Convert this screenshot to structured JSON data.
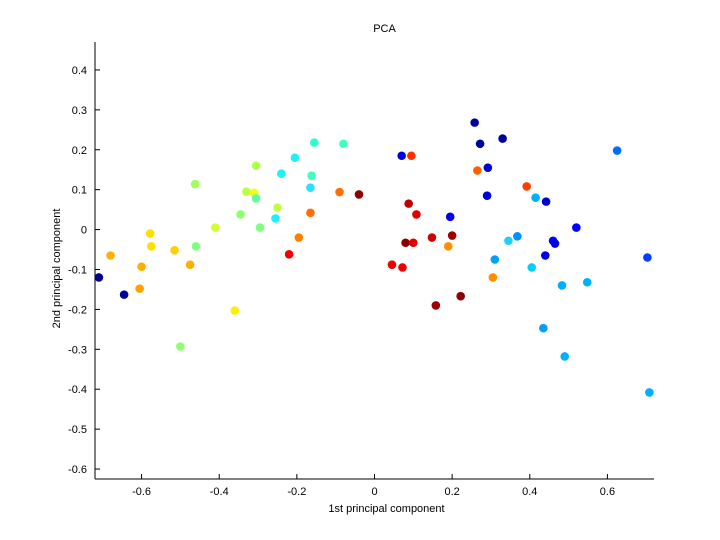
{
  "chart_data": {
    "type": "scatter",
    "title": "PCA",
    "xlabel": "1st principal component",
    "ylabel": "2nd principal component",
    "xlim": [
      -0.72,
      0.72
    ],
    "ylim": [
      -0.625,
      0.47
    ],
    "xticks": [
      -0.6,
      -0.4,
      -0.2,
      0,
      0.2,
      0.4,
      0.6
    ],
    "xtick_labels": [
      "-0.6",
      "-0.4",
      "-0.2",
      "0",
      "0.2",
      "0.4",
      "0.6"
    ],
    "yticks": [
      0.4,
      0.3,
      0.2,
      0.1,
      0,
      -0.1,
      -0.2,
      -0.3,
      -0.4,
      -0.5,
      -0.6
    ],
    "ytick_labels": [
      "0.4",
      "0.3",
      "0.2",
      "0.1",
      "0",
      "-0.1",
      "-0.2",
      "-0.3",
      "-0.4",
      "-0.5",
      "-0.6"
    ],
    "grid": false,
    "legend": "none",
    "colormap": "jet",
    "points": [
      {
        "x": -0.71,
        "y": -0.12,
        "c": "#00008f"
      },
      {
        "x": -0.645,
        "y": -0.163,
        "c": "#00009f"
      },
      {
        "x": -0.68,
        "y": -0.065,
        "c": "#ffaf00"
      },
      {
        "x": -0.6,
        "y": -0.093,
        "c": "#ffaf00"
      },
      {
        "x": -0.605,
        "y": -0.148,
        "c": "#ff9f00"
      },
      {
        "x": -0.578,
        "y": -0.01,
        "c": "#ffdf00"
      },
      {
        "x": -0.575,
        "y": -0.042,
        "c": "#ffdf00"
      },
      {
        "x": -0.515,
        "y": -0.052,
        "c": "#ffcf00"
      },
      {
        "x": -0.5,
        "y": -0.293,
        "c": "#8fff6f"
      },
      {
        "x": -0.475,
        "y": -0.088,
        "c": "#ffaf00"
      },
      {
        "x": -0.462,
        "y": 0.114,
        "c": "#9fff5f"
      },
      {
        "x": -0.46,
        "y": -0.042,
        "c": "#7fff7f"
      },
      {
        "x": -0.41,
        "y": 0.005,
        "c": "#cfff2f"
      },
      {
        "x": -0.36,
        "y": -0.203,
        "c": "#ffef00"
      },
      {
        "x": -0.345,
        "y": 0.038,
        "c": "#8fff6f"
      },
      {
        "x": -0.33,
        "y": 0.095,
        "c": "#bfff3f"
      },
      {
        "x": -0.31,
        "y": 0.092,
        "c": "#efff0f"
      },
      {
        "x": -0.305,
        "y": 0.16,
        "c": "#afff4f"
      },
      {
        "x": -0.305,
        "y": 0.078,
        "c": "#5fff9f"
      },
      {
        "x": -0.295,
        "y": 0.005,
        "c": "#7fff7f"
      },
      {
        "x": -0.255,
        "y": 0.028,
        "c": "#1fefff"
      },
      {
        "x": -0.25,
        "y": 0.055,
        "c": "#bfff3f"
      },
      {
        "x": -0.24,
        "y": 0.14,
        "c": "#1fefff"
      },
      {
        "x": -0.22,
        "y": -0.062,
        "c": "#ef0000"
      },
      {
        "x": -0.205,
        "y": 0.18,
        "c": "#1fefff"
      },
      {
        "x": -0.195,
        "y": -0.02,
        "c": "#ff7f00"
      },
      {
        "x": -0.165,
        "y": 0.105,
        "c": "#2fdfff"
      },
      {
        "x": -0.165,
        "y": 0.042,
        "c": "#ff6f00"
      },
      {
        "x": -0.162,
        "y": 0.135,
        "c": "#3fffbf"
      },
      {
        "x": -0.155,
        "y": 0.218,
        "c": "#2fffcf"
      },
      {
        "x": -0.09,
        "y": 0.094,
        "c": "#ff6f00"
      },
      {
        "x": -0.08,
        "y": 0.215,
        "c": "#3fffbf"
      },
      {
        "x": -0.04,
        "y": 0.088,
        "c": "#8f0000"
      },
      {
        "x": 0.045,
        "y": -0.088,
        "c": "#ef0000"
      },
      {
        "x": 0.07,
        "y": 0.185,
        "c": "#0000df"
      },
      {
        "x": 0.072,
        "y": -0.095,
        "c": "#ef0000"
      },
      {
        "x": 0.08,
        "y": -0.033,
        "c": "#8f0000"
      },
      {
        "x": 0.088,
        "y": 0.065,
        "c": "#bf0000"
      },
      {
        "x": 0.095,
        "y": 0.185,
        "c": "#ff2f00"
      },
      {
        "x": 0.1,
        "y": -0.033,
        "c": "#df0000"
      },
      {
        "x": 0.108,
        "y": 0.038,
        "c": "#df0000"
      },
      {
        "x": 0.148,
        "y": -0.02,
        "c": "#cf0000"
      },
      {
        "x": 0.158,
        "y": -0.19,
        "c": "#9f0000"
      },
      {
        "x": 0.19,
        "y": -0.042,
        "c": "#ff8f00"
      },
      {
        "x": 0.195,
        "y": 0.032,
        "c": "#0000ef"
      },
      {
        "x": 0.2,
        "y": -0.015,
        "c": "#9f0000"
      },
      {
        "x": 0.222,
        "y": -0.167,
        "c": "#8f0000"
      },
      {
        "x": 0.258,
        "y": 0.268,
        "c": "#00009f"
      },
      {
        "x": 0.265,
        "y": 0.148,
        "c": "#ff5f00"
      },
      {
        "x": 0.272,
        "y": 0.215,
        "c": "#00009f"
      },
      {
        "x": 0.29,
        "y": 0.085,
        "c": "#0000df"
      },
      {
        "x": 0.292,
        "y": 0.155,
        "c": "#0000cf"
      },
      {
        "x": 0.305,
        "y": -0.12,
        "c": "#ff8f00"
      },
      {
        "x": 0.31,
        "y": -0.075,
        "c": "#009fff"
      },
      {
        "x": 0.33,
        "y": 0.228,
        "c": "#00009f"
      },
      {
        "x": 0.345,
        "y": -0.028,
        "c": "#1fcfff"
      },
      {
        "x": 0.368,
        "y": -0.017,
        "c": "#008fff"
      },
      {
        "x": 0.392,
        "y": 0.108,
        "c": "#ff3f00"
      },
      {
        "x": 0.405,
        "y": -0.095,
        "c": "#00cfff"
      },
      {
        "x": 0.415,
        "y": 0.08,
        "c": "#00afff"
      },
      {
        "x": 0.435,
        "y": -0.247,
        "c": "#009fff"
      },
      {
        "x": 0.44,
        "y": -0.065,
        "c": "#0000df"
      },
      {
        "x": 0.442,
        "y": 0.07,
        "c": "#0000cf"
      },
      {
        "x": 0.46,
        "y": -0.028,
        "c": "#0000ff"
      },
      {
        "x": 0.465,
        "y": -0.035,
        "c": "#0000ef"
      },
      {
        "x": 0.483,
        "y": -0.14,
        "c": "#00afff"
      },
      {
        "x": 0.49,
        "y": -0.318,
        "c": "#00afff"
      },
      {
        "x": 0.52,
        "y": 0.005,
        "c": "#0000ff"
      },
      {
        "x": 0.548,
        "y": -0.132,
        "c": "#00afff"
      },
      {
        "x": 0.625,
        "y": 0.198,
        "c": "#006fff"
      },
      {
        "x": 0.703,
        "y": -0.07,
        "c": "#003fff"
      },
      {
        "x": 0.708,
        "y": -0.408,
        "c": "#00afff"
      }
    ]
  }
}
